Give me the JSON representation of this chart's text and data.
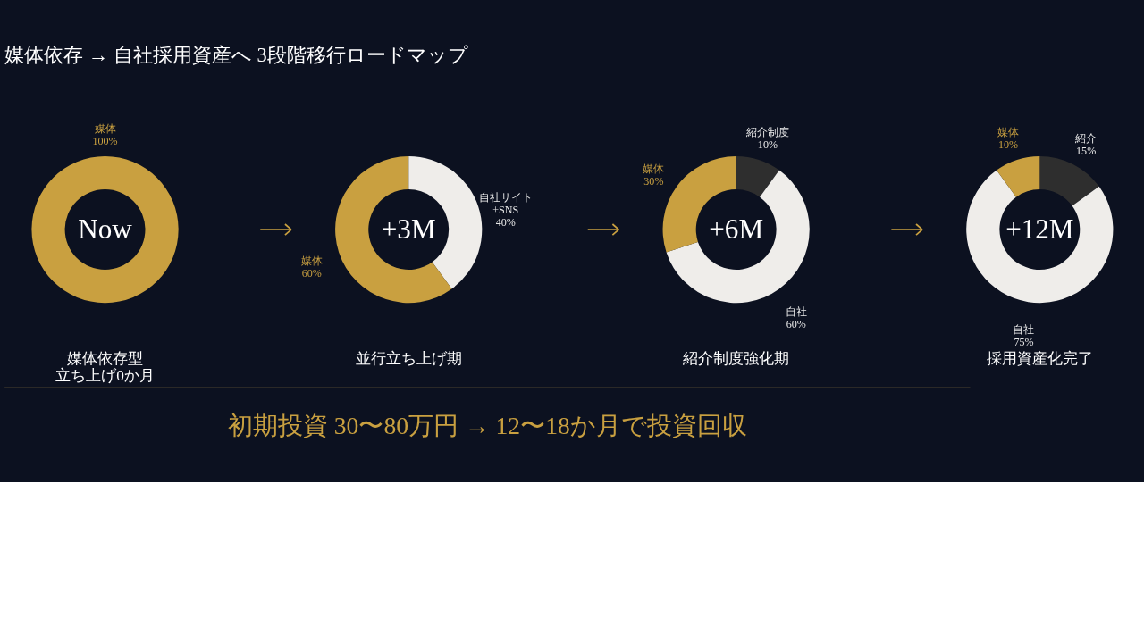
{
  "chart_data": [
    {
      "type": "other",
      "title": "媒体依存 → 自社採用資産へ 3段階移行ロードマップ"
    },
    {
      "type": "donut",
      "categories": [
        "媒体"
      ],
      "values": [
        100
      ],
      "value_labels": [
        "100%"
      ],
      "colors": [
        "#c9a040"
      ],
      "annotations": [
        "Now"
      ],
      "xlabel": "媒体依存型立ち上げ0か月"
    },
    {
      "type": "donut",
      "categories": [
        "自社サイト +SNS",
        "媒体"
      ],
      "values": [
        40,
        60
      ],
      "value_labels": [
        "40%",
        "60%"
      ],
      "colors": [
        "#efedea",
        "#c9a040"
      ],
      "annotations": [
        "+3M"
      ],
      "xlabel": "並行立ち上げ期"
    },
    {
      "type": "donut",
      "categories": [
        "紹介制度",
        "自社",
        "媒体"
      ],
      "values": [
        10,
        60,
        30
      ],
      "value_labels": [
        "10%",
        "60%",
        "30%"
      ],
      "colors": [
        "#2e2e2e",
        "#efedea",
        "#c9a040"
      ],
      "annotations": [
        "+6M"
      ],
      "xlabel": "紹介制度強化期"
    },
    {
      "type": "donut",
      "categories": [
        "紹介",
        "自社",
        "媒体"
      ],
      "values": [
        15,
        75,
        10
      ],
      "value_labels": [
        "15%",
        "75%",
        "10%"
      ],
      "colors": [
        "#2e2e2e",
        "#efedea",
        "#c9a040"
      ],
      "annotations": [
        "+12M"
      ],
      "xlabel": "採用資産化完了"
    },
    {
      "type": "other",
      "annotations": [
        "初期投資 30〜80万円 → 12〜18か月で投資回収"
      ]
    }
  ]
}
